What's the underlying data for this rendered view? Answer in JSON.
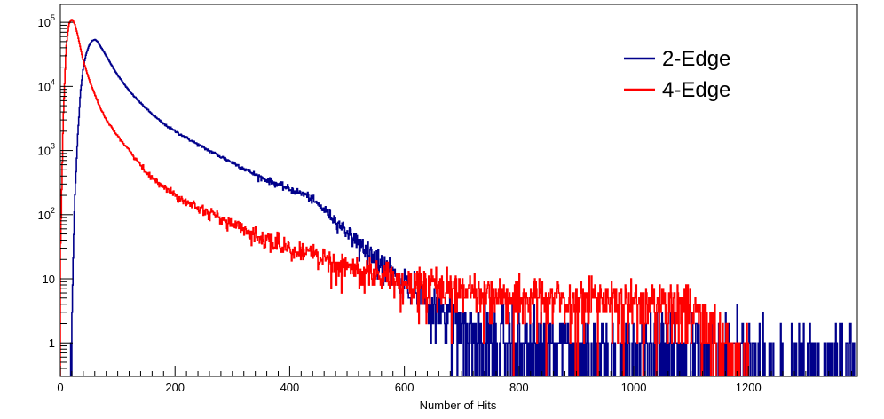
{
  "chart_data": {
    "type": "line",
    "style": "step histogram",
    "title": "",
    "xlabel": "Number of Hits",
    "ylabel": "",
    "xlim": [
      0,
      1390
    ],
    "ylim": [
      0.3,
      190000
    ],
    "yscale": "log",
    "grid": false,
    "legend_position": "top-right",
    "x_ticks": [
      {
        "value": 0,
        "label": "0"
      },
      {
        "value": 200,
        "label": "200"
      },
      {
        "value": 400,
        "label": "400"
      },
      {
        "value": 600,
        "label": "600"
      },
      {
        "value": 800,
        "label": "800"
      },
      {
        "value": 1000,
        "label": "1000"
      },
      {
        "value": 1200,
        "label": "1200"
      }
    ],
    "y_ticks": [
      {
        "value": 1,
        "base": "1",
        "exp": ""
      },
      {
        "value": 10,
        "base": "10",
        "exp": ""
      },
      {
        "value": 100,
        "base": "10",
        "exp": "2"
      },
      {
        "value": 1000,
        "base": "10",
        "exp": "3"
      },
      {
        "value": 10000,
        "base": "10",
        "exp": "4"
      },
      {
        "value": 100000,
        "base": "10",
        "exp": "5"
      }
    ],
    "series": [
      {
        "name": "2-Edge",
        "color": "#00008b",
        "x": [
          0,
          15,
          20,
          25,
          30,
          35,
          40,
          45,
          50,
          55,
          60,
          65,
          70,
          80,
          90,
          100,
          120,
          140,
          160,
          180,
          200,
          250,
          300,
          350,
          400,
          430,
          460,
          500,
          550,
          600,
          650,
          700,
          750,
          800,
          850,
          900,
          950,
          1000,
          1050,
          1100,
          1150,
          1200,
          1250,
          1300,
          1350,
          1385
        ],
        "y": [
          0,
          0,
          2,
          150,
          1500,
          8000,
          20000,
          32000,
          43000,
          51000,
          54000,
          50000,
          42000,
          30000,
          21000,
          15000,
          8500,
          5500,
          3700,
          2600,
          2000,
          1100,
          650,
          380,
          250,
          200,
          120,
          55,
          20,
          8,
          4,
          2,
          1,
          1,
          0.8,
          0.8,
          0.8,
          0.8,
          0.8,
          0.7,
          0.6,
          0.6,
          0.5,
          0.5,
          0.5,
          0.5
        ]
      },
      {
        "name": "4-Edge",
        "color": "#ff0000",
        "x": [
          0,
          5,
          10,
          15,
          20,
          25,
          30,
          35,
          40,
          50,
          60,
          70,
          80,
          100,
          120,
          150,
          200,
          250,
          300,
          350,
          400,
          450,
          500,
          550,
          600,
          650,
          700,
          750,
          800,
          850,
          900,
          950,
          1000,
          1050,
          1100,
          1150,
          1200
        ],
        "y": [
          20,
          3000,
          40000,
          95000,
          112000,
          95000,
          65000,
          40000,
          25000,
          13000,
          7500,
          4500,
          3000,
          1700,
          1000,
          450,
          200,
          120,
          70,
          45,
          30,
          22,
          16,
          12,
          9,
          8,
          7,
          6,
          5,
          5,
          5,
          5,
          4,
          4,
          4,
          1,
          0.3
        ]
      }
    ]
  }
}
